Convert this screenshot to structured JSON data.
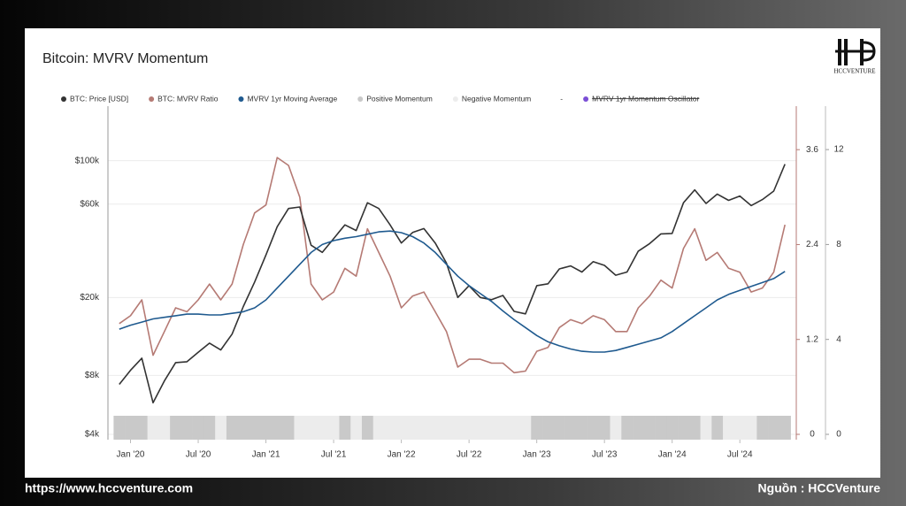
{
  "chart_data": {
    "type": "line",
    "title": "Bitcoin: MVRV Momentum",
    "logo_text": "HCCVENTURE",
    "footer_left": "https://www.hccventure.com",
    "footer_right": "Nguồn : HCCVenture",
    "x": [
      "2019-12",
      "2020-01",
      "2020-02",
      "2020-03",
      "2020-04",
      "2020-05",
      "2020-06",
      "2020-07",
      "2020-08",
      "2020-09",
      "2020-10",
      "2020-11",
      "2020-12",
      "2021-01",
      "2021-02",
      "2021-03",
      "2021-04",
      "2021-05",
      "2021-06",
      "2021-07",
      "2021-08",
      "2021-09",
      "2021-10",
      "2021-11",
      "2021-12",
      "2022-01",
      "2022-02",
      "2022-03",
      "2022-04",
      "2022-05",
      "2022-06",
      "2022-07",
      "2022-08",
      "2022-09",
      "2022-10",
      "2022-11",
      "2022-12",
      "2023-01",
      "2023-02",
      "2023-03",
      "2023-04",
      "2023-05",
      "2023-06",
      "2023-07",
      "2023-08",
      "2023-09",
      "2023-10",
      "2023-11",
      "2023-12",
      "2024-01",
      "2024-02",
      "2024-03",
      "2024-04",
      "2024-05",
      "2024-06",
      "2024-07",
      "2024-08",
      "2024-09",
      "2024-10",
      "2024-11"
    ],
    "xlim": [
      "2019-11",
      "2024-12"
    ],
    "xticks": [
      {
        "value": "2020-01",
        "label": "Jan '20"
      },
      {
        "value": "2020-07",
        "label": "Jul '20"
      },
      {
        "value": "2021-01",
        "label": "Jan '21"
      },
      {
        "value": "2021-07",
        "label": "Jul '21"
      },
      {
        "value": "2022-01",
        "label": "Jan '22"
      },
      {
        "value": "2022-07",
        "label": "Jul '22"
      },
      {
        "value": "2023-01",
        "label": "Jan '23"
      },
      {
        "value": "2023-07",
        "label": "Jul '23"
      },
      {
        "value": "2024-01",
        "label": "Jan '24"
      },
      {
        "value": "2024-07",
        "label": "Jul '24"
      }
    ],
    "ylim": [
      4000,
      190000
    ],
    "log_scale": true,
    "yticks": [
      {
        "value": 4000,
        "label": "$4k"
      },
      {
        "value": 8000,
        "label": "$8k"
      },
      {
        "value": 20000,
        "label": "$20k"
      },
      {
        "value": 60000,
        "label": "$60k"
      },
      {
        "value": 100000,
        "label": "$100k"
      }
    ],
    "y2lim": [
      0,
      4.15
    ],
    "y2ticks": [
      0,
      1.2,
      2.4,
      3.6
    ],
    "y3lim": [
      0,
      13.83
    ],
    "y3ticks": [
      0,
      4,
      8,
      12
    ],
    "grid": true,
    "series": [
      {
        "name": "BTC: Price [USD]",
        "color": "#333333",
        "axis": "y",
        "values": [
          7200,
          8500,
          9800,
          5800,
          7500,
          9300,
          9400,
          10500,
          11700,
          10800,
          13000,
          18000,
          24000,
          33000,
          46000,
          57000,
          58000,
          37000,
          34000,
          40000,
          47000,
          44000,
          61000,
          57000,
          47000,
          38000,
          43000,
          45000,
          38000,
          30000,
          20000,
          23000,
          20000,
          19500,
          20500,
          17000,
          16500,
          23000,
          23500,
          28000,
          29000,
          27000,
          30500,
          29200,
          26000,
          27000,
          34500,
          37700,
          42300,
          42500,
          61000,
          71000,
          60500,
          67500,
          62700,
          66000,
          59000,
          63300,
          70000,
          96000
        ]
      },
      {
        "name": "BTC: MVRV Ratio",
        "color": "#b57a74",
        "axis": "y2",
        "values": [
          1.4,
          1.5,
          1.7,
          1.0,
          1.3,
          1.6,
          1.55,
          1.7,
          1.9,
          1.7,
          1.9,
          2.4,
          2.8,
          2.9,
          3.5,
          3.4,
          3.0,
          1.9,
          1.7,
          1.8,
          2.1,
          2.0,
          2.6,
          2.3,
          2.0,
          1.6,
          1.75,
          1.8,
          1.55,
          1.3,
          0.85,
          0.95,
          0.95,
          0.9,
          0.9,
          0.78,
          0.8,
          1.05,
          1.1,
          1.35,
          1.45,
          1.4,
          1.5,
          1.45,
          1.3,
          1.3,
          1.6,
          1.75,
          1.95,
          1.85,
          2.35,
          2.6,
          2.2,
          2.3,
          2.1,
          2.05,
          1.8,
          1.85,
          2.05,
          2.65
        ]
      },
      {
        "name": "MVRV 1yr Moving Average",
        "color": "#1f5a8f",
        "axis": "y2",
        "values": [
          1.33,
          1.38,
          1.42,
          1.46,
          1.48,
          1.5,
          1.52,
          1.52,
          1.51,
          1.51,
          1.53,
          1.55,
          1.6,
          1.7,
          1.85,
          2.0,
          2.15,
          2.3,
          2.4,
          2.45,
          2.48,
          2.5,
          2.53,
          2.56,
          2.57,
          2.55,
          2.5,
          2.42,
          2.3,
          2.15,
          2.0,
          1.88,
          1.78,
          1.68,
          1.56,
          1.45,
          1.35,
          1.25,
          1.17,
          1.12,
          1.08,
          1.05,
          1.04,
          1.04,
          1.06,
          1.1,
          1.14,
          1.18,
          1.22,
          1.3,
          1.4,
          1.5,
          1.6,
          1.7,
          1.77,
          1.82,
          1.87,
          1.92,
          1.97,
          2.06
        ]
      }
    ],
    "momentum_legend": {
      "positive": {
        "name": "Positive Momentum",
        "color": "#c9c9c9"
      },
      "negative": {
        "name": "Negative Momentum",
        "color": "#ececec"
      }
    },
    "momentum": [
      1,
      1,
      1,
      0,
      0,
      1,
      1,
      1,
      1,
      0,
      1,
      1,
      1,
      1,
      1,
      1,
      0,
      0,
      0,
      0,
      1,
      0,
      1,
      0,
      0,
      0,
      0,
      0,
      0,
      0,
      0,
      0,
      0,
      0,
      0,
      0,
      0,
      1,
      1,
      1,
      1,
      1,
      1,
      1,
      0,
      1,
      1,
      1,
      1,
      1,
      1,
      1,
      0,
      1,
      0,
      0,
      0,
      1,
      1,
      1
    ],
    "extra_legend": [
      {
        "name": "-"
      },
      {
        "name": "MVRV 1yr Momentum Oscillator",
        "color": "#7b4fd6",
        "hidden": true
      }
    ]
  }
}
